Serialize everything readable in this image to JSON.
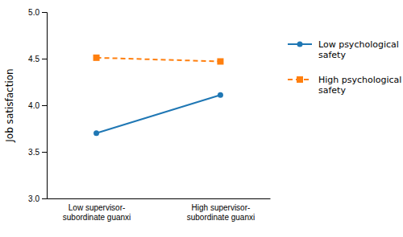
{
  "chart_data": {
    "type": "line",
    "categories": [
      "Low supervisor-\nsubordinate guanxi",
      "High supervisor-\nsubordinate guanxi"
    ],
    "series": [
      {
        "name": "Low psychological\nsafety",
        "values": [
          3.7,
          4.11
        ],
        "line_style": "solid",
        "marker": "circle"
      },
      {
        "name": "High psychological\nsafety",
        "values": [
          4.51,
          4.47
        ],
        "line_style": "dashed",
        "marker": "square"
      }
    ],
    "ylabel": "Job satisfaction",
    "ylim": [
      3.0,
      5.0
    ],
    "yticks": [
      {
        "value": 3.0,
        "label": "3.0"
      },
      {
        "value": 3.5,
        "label": "3.5"
      },
      {
        "value": 4.0,
        "label": "4.0"
      },
      {
        "value": 4.5,
        "label": "4.5"
      },
      {
        "value": 5.0,
        "label": "5.0"
      }
    ],
    "grid": false,
    "legend": "right"
  }
}
